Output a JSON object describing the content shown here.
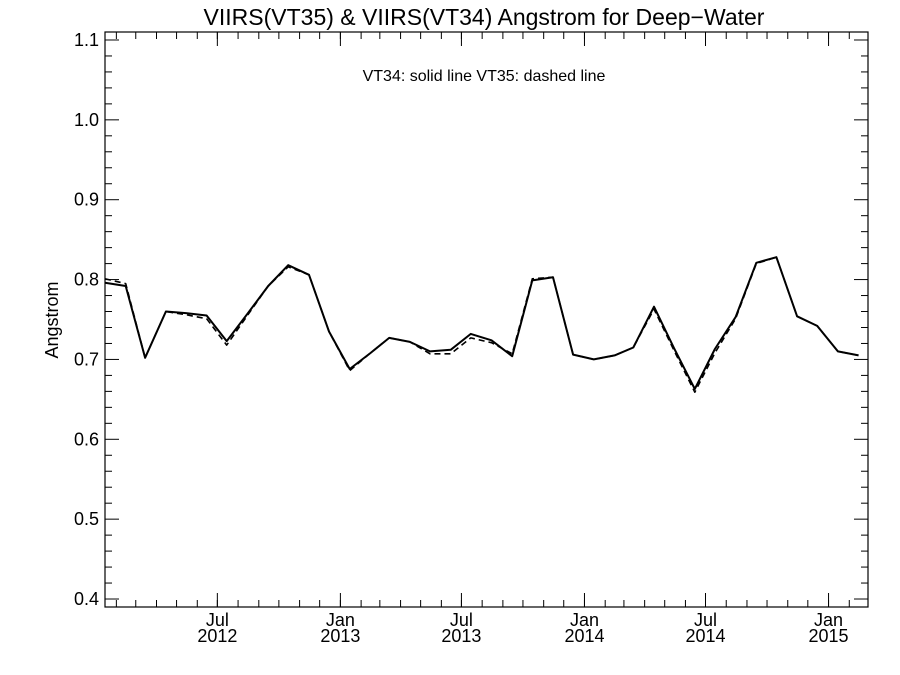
{
  "chart_data": {
    "type": "line",
    "title": "VIIRS(VT35) & VIIRS(VT34)  Angstrom for Deep−Water",
    "annotation": "VT34: solid line   VT35: dashed line",
    "xlabel": "",
    "ylabel": "Angstrom",
    "x_date_range": [
      "2012-01-15",
      "2015-03-01"
    ],
    "ylim": [
      0.39,
      1.11
    ],
    "x_ticks": [
      {
        "date": "2012-07-01",
        "month": "Jul",
        "year": "2012"
      },
      {
        "date": "2013-01-01",
        "month": "Jan",
        "year": "2013"
      },
      {
        "date": "2013-07-01",
        "month": "Jul",
        "year": "2013"
      },
      {
        "date": "2014-01-01",
        "month": "Jan",
        "year": "2014"
      },
      {
        "date": "2014-07-01",
        "month": "Jul",
        "year": "2014"
      },
      {
        "date": "2015-01-01",
        "month": "Jan",
        "year": "2015"
      }
    ],
    "y_ticks": [
      0.4,
      0.5,
      0.6,
      0.7,
      0.8,
      0.9,
      1.0,
      1.1
    ],
    "y_tick_labels": [
      "0.4",
      "0.5",
      "0.6",
      "0.7",
      "0.8",
      "0.9",
      "1.0",
      "1.1"
    ],
    "series": [
      {
        "name": "VT34",
        "style": "solid",
        "color": "#000000",
        "x": [
          "2012-01-15",
          "2012-02-15",
          "2012-03-15",
          "2012-04-15",
          "2012-05-15",
          "2012-06-15",
          "2012-07-15",
          "2012-08-15",
          "2012-09-15",
          "2012-10-15",
          "2012-11-15",
          "2012-12-15",
          "2013-01-15",
          "2013-02-15",
          "2013-03-15",
          "2013-04-15",
          "2013-05-15",
          "2013-06-15",
          "2013-07-15",
          "2013-08-15",
          "2013-09-15",
          "2013-10-15",
          "2013-11-15",
          "2013-12-15",
          "2014-01-15",
          "2014-02-15",
          "2014-03-15",
          "2014-04-15",
          "2014-05-15",
          "2014-06-15",
          "2014-07-15",
          "2014-08-15",
          "2014-09-15",
          "2014-10-15",
          "2014-11-15",
          "2014-12-15",
          "2015-01-15",
          "2015-02-15"
        ],
        "y": [
          0.796,
          0.792,
          0.702,
          0.76,
          0.758,
          0.755,
          0.723,
          0.757,
          0.792,
          0.818,
          0.806,
          0.735,
          0.688,
          0.708,
          0.727,
          0.722,
          0.71,
          0.712,
          0.732,
          0.724,
          0.704,
          0.799,
          0.803,
          0.706,
          0.7,
          0.705,
          0.715,
          0.766,
          0.714,
          0.663,
          0.713,
          0.753,
          0.821,
          0.828,
          0.754,
          0.742,
          0.71,
          0.705
        ]
      },
      {
        "name": "VT35",
        "style": "dashed",
        "color": "#000000",
        "x": [
          "2012-01-15",
          "2012-02-15",
          "2012-03-15",
          "2012-04-15",
          "2012-05-15",
          "2012-06-15",
          "2012-07-15",
          "2012-08-15",
          "2012-09-15",
          "2012-10-15",
          "2012-11-15",
          "2012-12-15",
          "2013-01-15",
          "2013-02-15",
          "2013-03-15",
          "2013-04-15",
          "2013-05-15",
          "2013-06-15",
          "2013-07-15",
          "2013-08-15",
          "2013-09-15",
          "2013-10-15",
          "2013-11-15",
          "2013-12-15",
          "2014-01-15",
          "2014-02-15",
          "2014-03-15",
          "2014-04-15",
          "2014-05-15",
          "2014-06-15",
          "2014-07-15",
          "2014-08-15",
          "2014-09-15",
          "2014-10-15",
          "2014-11-15",
          "2014-12-15",
          "2015-01-15",
          "2015-02-15"
        ],
        "y": [
          0.801,
          0.795,
          0.702,
          0.76,
          0.756,
          0.751,
          0.718,
          0.755,
          0.792,
          0.816,
          0.806,
          0.735,
          0.686,
          0.708,
          0.727,
          0.722,
          0.707,
          0.707,
          0.727,
          0.721,
          0.707,
          0.801,
          0.803,
          0.706,
          0.7,
          0.705,
          0.715,
          0.763,
          0.711,
          0.659,
          0.708,
          0.751,
          0.82,
          0.828,
          0.754,
          0.742,
          0.71,
          0.705
        ]
      }
    ],
    "grid": false,
    "legend": "none"
  }
}
